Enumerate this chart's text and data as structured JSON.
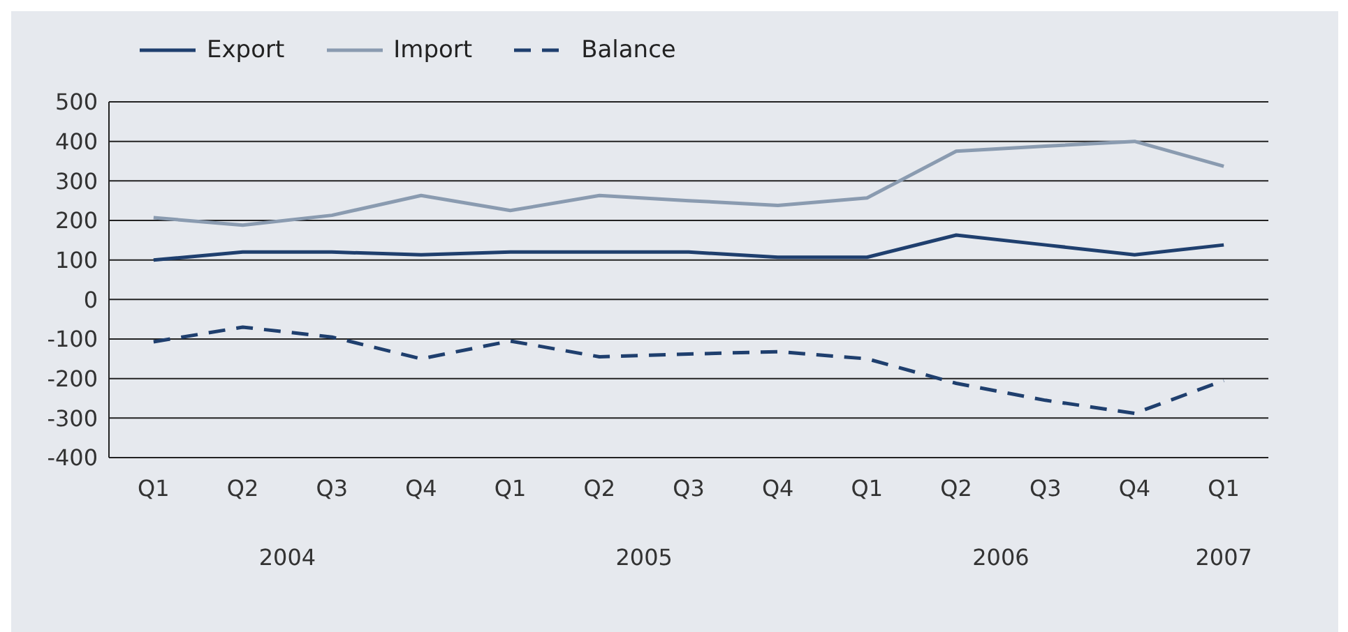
{
  "chart_data": {
    "type": "line",
    "categories": [
      "Q1",
      "Q2",
      "Q3",
      "Q4",
      "Q1",
      "Q2",
      "Q3",
      "Q4",
      "Q1",
      "Q2",
      "Q3",
      "Q4",
      "Q1"
    ],
    "annotations": [
      "2004",
      "2005",
      "2006",
      "2007"
    ],
    "series": [
      {
        "name": "Export",
        "color": "#1f3f6e",
        "line_style": "solid",
        "values": [
          100,
          120,
          120,
          113,
          120,
          120,
          120,
          107,
          107,
          163,
          138,
          113,
          138
        ]
      },
      {
        "name": "Import",
        "color": "#8a9bb0",
        "line_style": "solid",
        "values": [
          207,
          188,
          213,
          263,
          225,
          263,
          250,
          238,
          257,
          375,
          388,
          400,
          337
        ]
      },
      {
        "name": "Balance",
        "color": "#1f3f6e",
        "line_style": "dashed",
        "values": [
          -107,
          -70,
          -95,
          -150,
          -105,
          -145,
          -138,
          -132,
          -150,
          -212,
          -255,
          -288,
          -205
        ]
      }
    ],
    "ylim": [
      -400,
      500
    ],
    "yticks": [
      -400,
      -300,
      -200,
      -100,
      0,
      100,
      200,
      300,
      400,
      500
    ],
    "grid": "y",
    "legend": "top left",
    "marker": "none"
  }
}
